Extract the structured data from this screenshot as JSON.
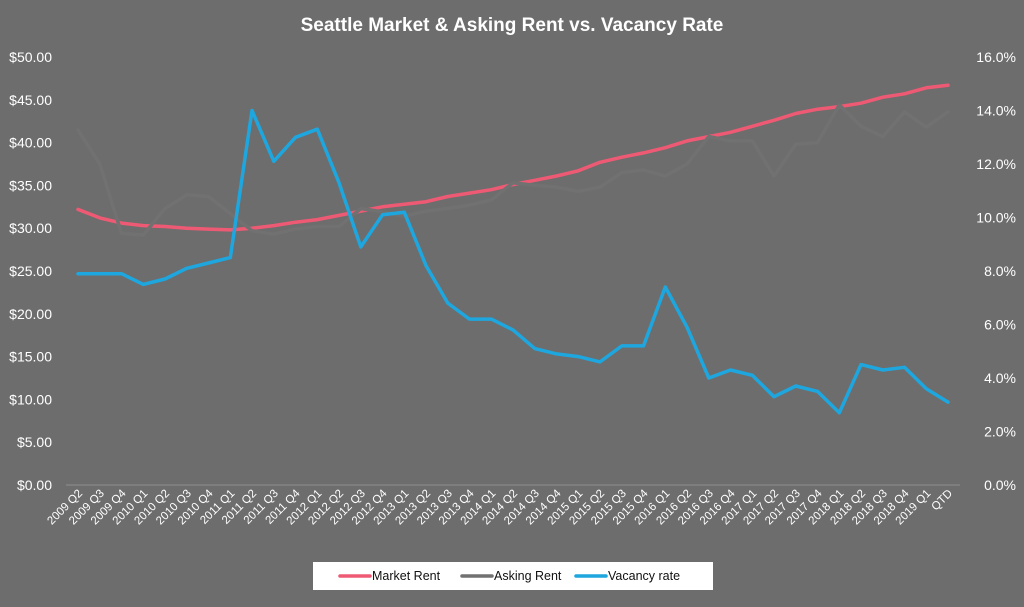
{
  "chart_data": {
    "type": "line",
    "title": "Seattle Market & Asking Rent vs. Vacancy Rate",
    "categories": [
      "2009 Q2",
      "2009 Q3",
      "2009 Q4",
      "2010 Q1",
      "2010 Q2",
      "2010 Q3",
      "2010 Q4",
      "2011 Q1",
      "2011 Q2",
      "2011 Q3",
      "2011 Q4",
      "2012 Q1",
      "2012 Q2",
      "2012 Q3",
      "2012 Q4",
      "2013 Q1",
      "2013 Q2",
      "2013 Q3",
      "2013 Q4",
      "2014 Q1",
      "2014 Q2",
      "2014 Q3",
      "2014 Q4",
      "2015 Q1",
      "2015 Q2",
      "2015 Q3",
      "2015 Q4",
      "2016 Q1",
      "2016 Q2",
      "2016 Q3",
      "2016 Q4",
      "2017 Q1",
      "2017 Q2",
      "2017 Q3",
      "2017 Q4",
      "2018 Q1",
      "2018 Q2",
      "2018 Q3",
      "2018 Q4",
      "2019 Q1",
      "QTD"
    ],
    "y_left": {
      "ylim": [
        0,
        50
      ],
      "ticks": [
        "$0.00",
        "$5.00",
        "$10.00",
        "$15.00",
        "$20.00",
        "$25.00",
        "$30.00",
        "$35.00",
        "$40.00",
        "$45.00",
        "$50.00"
      ]
    },
    "y_right": {
      "ylim": [
        0,
        16
      ],
      "ticks": [
        "0.0%",
        "2.0%",
        "4.0%",
        "6.0%",
        "8.0%",
        "10.0%",
        "12.0%",
        "14.0%",
        "16.0%"
      ]
    },
    "series": [
      {
        "name": "Market Rent",
        "axis": "left",
        "color": "#ee5a73",
        "values": [
          32.2,
          31.2,
          30.6,
          30.3,
          30.2,
          30.0,
          29.9,
          29.8,
          30.0,
          30.3,
          30.7,
          31.0,
          31.5,
          32.0,
          32.5,
          32.8,
          33.1,
          33.7,
          34.1,
          34.5,
          35.1,
          35.6,
          36.1,
          36.7,
          37.7,
          38.3,
          38.8,
          39.4,
          40.2,
          40.7,
          41.2,
          41.9,
          42.6,
          43.4,
          43.9,
          44.2,
          44.6,
          45.3,
          45.7,
          46.4,
          46.7
        ]
      },
      {
        "name": "Asking Rent",
        "axis": "left",
        "color": "#717171",
        "values": [
          41.5,
          37.5,
          29.4,
          29.2,
          32.3,
          33.9,
          33.7,
          31.7,
          29.7,
          29.3,
          29.9,
          30.2,
          30.2,
          32.3,
          31.9,
          31.4,
          32.0,
          32.3,
          32.7,
          33.3,
          35.3,
          35.0,
          34.8,
          34.3,
          34.8,
          36.5,
          36.8,
          36.1,
          37.5,
          40.7,
          40.2,
          40.2,
          36.1,
          39.8,
          40.0,
          44.4,
          41.9,
          40.7,
          43.6,
          41.8,
          43.6
        ]
      },
      {
        "name": "Vacancy rate",
        "axis": "right",
        "color": "#1ea6df",
        "values": [
          7.9,
          7.9,
          7.9,
          7.5,
          7.7,
          8.1,
          8.3,
          8.5,
          14.0,
          12.1,
          13.0,
          13.3,
          11.3,
          8.9,
          10.1,
          10.2,
          8.2,
          6.8,
          6.2,
          6.2,
          5.8,
          5.1,
          4.9,
          4.8,
          4.6,
          5.2,
          5.2,
          7.4,
          5.9,
          4.0,
          4.3,
          4.1,
          3.3,
          3.7,
          3.5,
          2.7,
          4.5,
          4.3,
          4.4,
          3.6,
          3.1
        ]
      }
    ],
    "legend": "bottom",
    "grid": false
  }
}
